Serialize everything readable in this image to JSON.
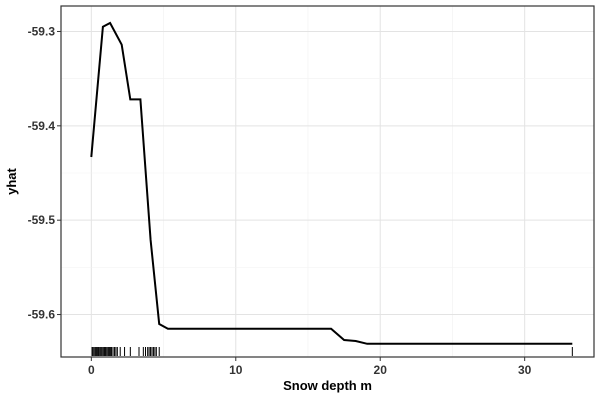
{
  "chart_data": {
    "type": "line",
    "title": "",
    "xlabel": "Snow depth m",
    "ylabel": "yhat",
    "xlim": [
      -2.1,
      34.8
    ],
    "ylim": [
      -59.645,
      -59.273
    ],
    "xticks": [
      0,
      10,
      20,
      30
    ],
    "yticks": [
      -59.3,
      -59.4,
      -59.5,
      -59.6
    ],
    "xtick_labels": [
      "0",
      "10",
      "20",
      "30"
    ],
    "ytick_labels": [
      "-59.3",
      "-59.4",
      "-59.5",
      "-59.6"
    ],
    "grid": true,
    "legend": "none",
    "line_color": "#000000",
    "series": [
      {
        "x": [
          0.0,
          0.8,
          1.3,
          2.1,
          2.7,
          3.4,
          4.1,
          4.7,
          5.3,
          16.6,
          17.5,
          18.3,
          19.1,
          33.3
        ],
        "y": [
          -59.433,
          -59.295,
          -59.291,
          -59.314,
          -59.372,
          -59.372,
          -59.521,
          -59.61,
          -59.615,
          -59.615,
          -59.627,
          -59.628,
          -59.631,
          -59.631
        ]
      }
    ],
    "rug": [
      0.05,
      0.12,
      0.2,
      0.28,
      0.35,
      0.42,
      0.5,
      0.58,
      0.65,
      0.72,
      0.8,
      0.88,
      0.95,
      1.02,
      1.1,
      1.18,
      1.25,
      1.32,
      1.4,
      1.5,
      1.6,
      1.7,
      1.8,
      2.0,
      2.3,
      2.7,
      3.3,
      3.6,
      3.75,
      3.9,
      4.0,
      4.1,
      4.2,
      4.3,
      4.4,
      4.5,
      4.7,
      33.3
    ]
  }
}
